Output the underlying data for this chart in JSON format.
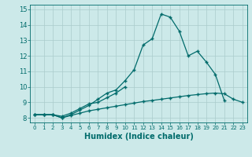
{
  "title": "",
  "xlabel": "Humidex (Indice chaleur)",
  "bg_color": "#cce9e9",
  "grid_color": "#aacccc",
  "line_color": "#006b6b",
  "xlim": [
    -0.5,
    23.5
  ],
  "ylim": [
    7.7,
    15.3
  ],
  "yticks": [
    8,
    9,
    10,
    11,
    12,
    13,
    14,
    15
  ],
  "xticks": [
    0,
    1,
    2,
    3,
    4,
    5,
    6,
    7,
    8,
    9,
    10,
    11,
    12,
    13,
    14,
    15,
    16,
    17,
    18,
    19,
    20,
    21,
    22,
    23
  ],
  "line1_x": [
    0,
    1,
    2,
    3,
    4,
    5,
    6,
    7,
    8,
    9,
    10,
    11,
    12,
    13,
    14,
    15,
    16,
    17,
    18,
    19,
    20,
    21
  ],
  "line1_y": [
    8.2,
    8.2,
    8.2,
    8.0,
    8.2,
    8.5,
    8.8,
    9.2,
    9.6,
    9.8,
    10.4,
    11.1,
    12.7,
    13.1,
    14.7,
    14.5,
    13.6,
    12.0,
    12.3,
    11.6,
    10.8,
    9.1
  ],
  "line2_x": [
    0,
    1,
    2,
    3,
    4,
    5,
    6,
    7,
    8,
    9,
    10
  ],
  "line2_y": [
    8.2,
    8.2,
    8.2,
    8.1,
    8.3,
    8.6,
    8.9,
    9.0,
    9.3,
    9.6,
    10.0
  ],
  "line3_x": [
    0,
    1,
    2,
    3,
    4,
    5,
    6,
    7,
    8,
    9,
    10,
    11,
    12,
    13,
    14,
    15,
    16,
    17,
    18,
    19,
    20,
    21,
    22,
    23
  ],
  "line3_y": [
    8.2,
    8.2,
    8.2,
    8.0,
    8.15,
    8.3,
    8.45,
    8.55,
    8.65,
    8.75,
    8.85,
    8.95,
    9.05,
    9.12,
    9.2,
    9.28,
    9.36,
    9.44,
    9.5,
    9.56,
    9.6,
    9.55,
    9.2,
    9.0
  ]
}
